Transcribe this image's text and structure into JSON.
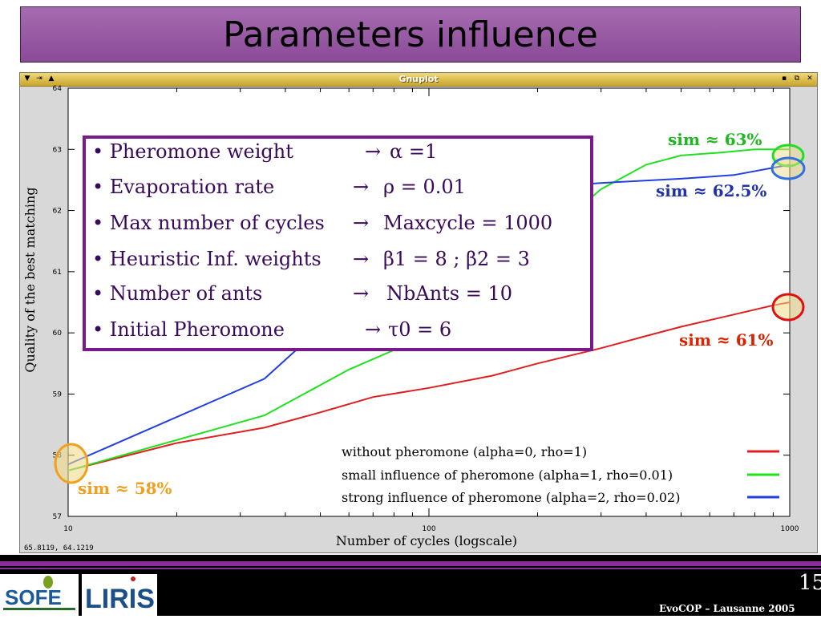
{
  "slide": {
    "title": "Parameters influence",
    "page_number": "15",
    "footer": "EvoCOP – Lausanne 2005",
    "logos": [
      "SOFE",
      "LIRIS"
    ]
  },
  "window": {
    "title": "Gnuplot",
    "coords_readout": "65.8119,  64.1219",
    "left_buttons": [
      "▼",
      "⇥",
      "▲"
    ],
    "right_buttons": [
      "▪",
      "⧉",
      "✕"
    ]
  },
  "params_box": {
    "lines": [
      {
        "label": "• Pheromone weight",
        "value": "α =1"
      },
      {
        "label": "• Evaporation rate",
        "value": "ρ = 0.01"
      },
      {
        "label": "• Max number of cycles",
        "value": "Maxcycle = 1000"
      },
      {
        "label": "• Heuristic Inf. weights",
        "value": "β1 = 8 ; β2 = 3"
      },
      {
        "label": "• Number of ants",
        "value": "NbAnts = 10"
      },
      {
        "label": "• Initial Pheromone",
        "value": "τ0 = 6"
      }
    ]
  },
  "annotations": [
    {
      "text": "sim ≈ 63%",
      "color": "#1fb81f"
    },
    {
      "text": "sim ≈ 62.5%",
      "color": "#2233aa"
    },
    {
      "text": "sim ≈ 61%",
      "color": "#dd2200"
    },
    {
      "text": "sim ≈ 58%",
      "color": "#f0a020"
    }
  ],
  "chart_data": {
    "type": "line",
    "xlabel": "Number of cycles (logscale)",
    "ylabel": "Quality of the best matching",
    "x_scale": "log",
    "xlim": [
      10,
      1000
    ],
    "ylim": [
      57,
      64
    ],
    "xticks": [
      10,
      100,
      1000
    ],
    "xtick_labels": [
      "10",
      "100",
      "1000"
    ],
    "yticks": [
      57,
      58,
      59,
      60,
      61,
      62,
      63,
      64
    ],
    "ytick_labels": [
      "57",
      "58",
      "59",
      "60",
      "61",
      "62",
      "63",
      "64"
    ],
    "legend_position": "bottom-right",
    "series": [
      {
        "name": "without pheromone  (alpha=0, rho=1)",
        "color": "#e02020",
        "x": [
          10,
          20,
          35,
          50,
          70,
          100,
          150,
          200,
          300,
          400,
          500,
          700,
          900,
          1000
        ],
        "y": [
          57.75,
          58.2,
          58.45,
          58.7,
          58.95,
          59.1,
          59.3,
          59.5,
          59.75,
          59.95,
          60.1,
          60.3,
          60.45,
          60.5
        ]
      },
      {
        "name": "small influence of pheromone  (alpha=1, rho=0.01)",
        "color": "#20e020",
        "x": [
          10,
          35,
          60,
          90,
          120,
          150,
          200,
          250,
          300,
          400,
          500,
          650,
          800,
          1000
        ],
        "y": [
          57.75,
          58.65,
          59.4,
          59.85,
          60.4,
          60.9,
          61.5,
          61.95,
          62.35,
          62.75,
          62.9,
          62.95,
          63.0,
          63.0
        ]
      },
      {
        "name": "strong influence of pheromone (alpha=2, rho=0.02)",
        "color": "#2040e0",
        "x": [
          10,
          35,
          55,
          80,
          120,
          200,
          300,
          500,
          700,
          1000
        ],
        "y": [
          57.85,
          59.25,
          60.3,
          61.2,
          61.95,
          62.38,
          62.45,
          62.52,
          62.58,
          62.75
        ]
      }
    ]
  }
}
